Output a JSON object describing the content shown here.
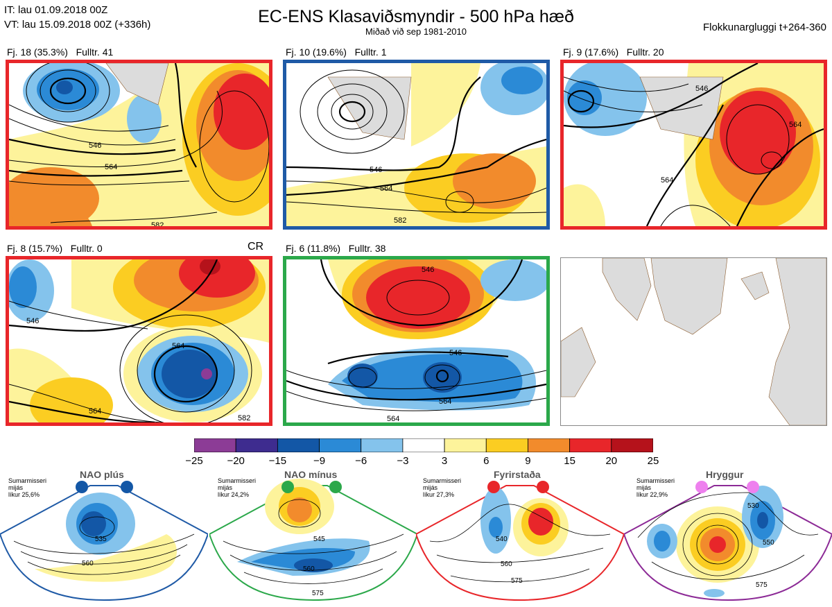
{
  "header": {
    "it_line": "IT: lau 01.09.2018 00Z",
    "vt_line": "VT: lau 15.09.2018 00Z  (+336h)",
    "title": "EC-ENS Klasaviðsmyndir - 500 hPa hæð",
    "subtitle": "Miðað við sep 1981-2010",
    "window": "Flokkunargluggi t+264-360"
  },
  "panels": [
    {
      "label": "Fj. 18 (35.3%)   Fulltr. 41",
      "border_color": "#e8262a",
      "contours": [
        "546",
        "564",
        "582"
      ]
    },
    {
      "label": "Fj. 10 (19.6%)   Fulltr. 1",
      "border_color": "#1f5aa6",
      "contours": [
        "546",
        "564",
        "582"
      ]
    },
    {
      "label": "Fj. 9 (17.6%)   Fulltr. 20",
      "border_color": "#e8262a",
      "contours": [
        "546",
        "564",
        "564"
      ]
    },
    {
      "label": "Fj. 8 (15.7%)   Fulltr. 0",
      "border_color": "#e8262a",
      "contours": [
        "546",
        "564",
        "564",
        "582"
      ]
    },
    {
      "label": "Fj. 6 (11.8%)   Fulltr. 38",
      "border_color": "#2ba84a",
      "contours": [
        "546",
        "546",
        "564",
        "564"
      ]
    }
  ],
  "cr_label": "CR",
  "colorbar": {
    "ticks": [
      "−25",
      "−20",
      "−15",
      "−9",
      "−6",
      "−3",
      "3",
      "6",
      "9",
      "15",
      "20",
      "25"
    ],
    "colors": [
      "#8c3c96",
      "#3e2c8f",
      "#1357a6",
      "#2b8ad6",
      "#84c3ec",
      "#ffffff",
      "#fdf39b",
      "#fbcd22",
      "#f28b2c",
      "#e8262a",
      "#b5121b"
    ]
  },
  "regimes": [
    {
      "name": "NAO plús",
      "season": "Sumarmisseri",
      "style": "mijás",
      "prob": "líkur 25,6%",
      "color": "#1f5aa6",
      "dot_color": "#1357a6",
      "contours": [
        "535",
        "560"
      ]
    },
    {
      "name": "NAO mínus",
      "season": "Sumarmisseri",
      "style": "mijás",
      "prob": "líkur 24,2%",
      "color": "#2ba84a",
      "dot_color": "#2ba84a",
      "contours": [
        "545",
        "560",
        "575"
      ]
    },
    {
      "name": "Fyrirstaða",
      "season": "Sumarmisseri",
      "style": "mijás",
      "prob": "líkur 27,3%",
      "color": "#e8262a",
      "dot_color": "#e8262a",
      "contours": [
        "540",
        "560",
        "575"
      ]
    },
    {
      "name": "Hryggur",
      "season": "Sumarmisseri",
      "style": "mijás",
      "prob": "líkur 22,9%",
      "color": "#8c2a96",
      "dot_color": "#ee80ee",
      "contours": [
        "530",
        "550",
        "575"
      ]
    }
  ]
}
